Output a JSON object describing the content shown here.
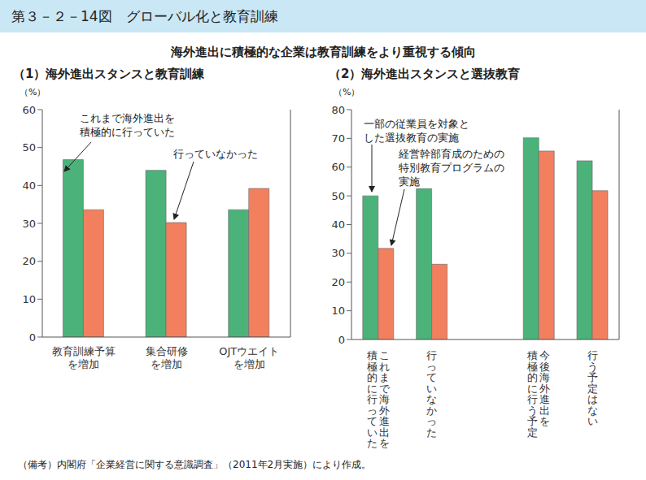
{
  "title": "第３－２－14図　グローバル化と教育訓練",
  "subtitle": "海外進出に積極的な企業は教育訓練をより重視する傾向",
  "note": "（備考）内閣府「企業経営に関する意識調査」（2011年2月実施）により作成。",
  "chart_data": [
    {
      "type": "bar",
      "title": "（1）海外進出スタンスと教育訓練",
      "ylabel": "（%）",
      "categories": [
        "教育訓練予算\nを増加",
        "集合研修\nを増加",
        "OJTウエイト\nを増加"
      ],
      "series": [
        {
          "name": "これまで海外進出を\n積極的に行っていた",
          "color": "#4bb37a",
          "values": [
            46.8,
            44.0,
            33.6
          ]
        },
        {
          "name": "行っていなかった",
          "color": "#f2805f",
          "values": [
            33.6,
            30.2,
            39.2
          ]
        }
      ],
      "ylim": [
        0,
        60
      ],
      "yticks": [
        0,
        10,
        20,
        30,
        40,
        50,
        60
      ],
      "grid": false
    },
    {
      "type": "bar",
      "title": "（2）海外進出スタンスと選抜教育",
      "ylabel": "（%）",
      "categories": [
        "これまで海外進出を\n積極的に行っていた",
        "行っていなかった",
        null,
        "今後海外進出を\n積極的に行う予定",
        "行う予定はない"
      ],
      "series": [
        {
          "name": "一部の従業員を対象と\nした選抜教育の実施",
          "color": "#4bb37a",
          "values": [
            50.0,
            52.5,
            null,
            70.2,
            62.2
          ]
        },
        {
          "name": "経営幹部育成のための\n特別教育プログラムの\n実施",
          "color": "#f2805f",
          "values": [
            31.7,
            26.2,
            null,
            65.6,
            51.8
          ]
        }
      ],
      "ylim": [
        0,
        80
      ],
      "yticks": [
        0,
        10,
        20,
        30,
        40,
        50,
        60,
        70,
        80
      ],
      "grid": false
    }
  ]
}
